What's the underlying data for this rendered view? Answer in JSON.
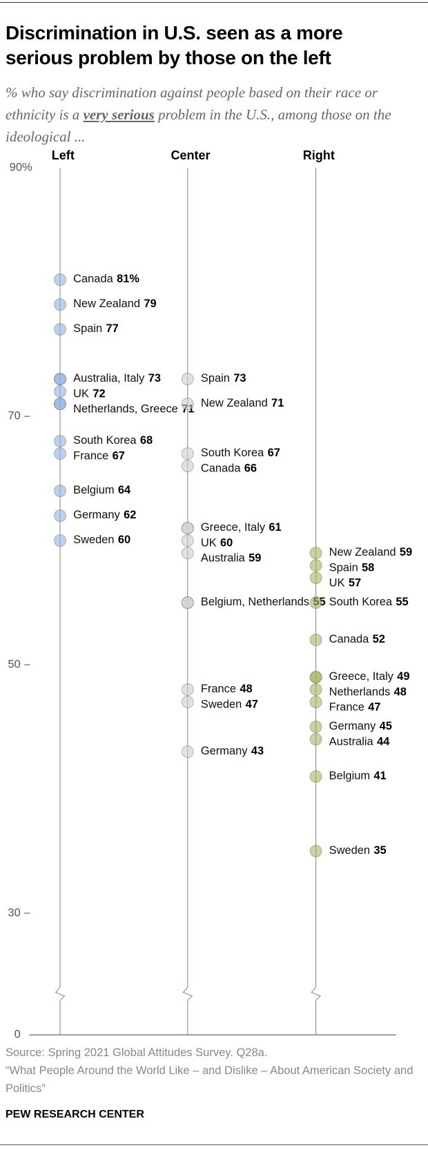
{
  "chart_data": {
    "type": "dot",
    "title": "Discrimination in U.S. seen as a more serious problem by those on the left",
    "subtitle": [
      "% who say discrimination against people based on their race or ethnicity is a ",
      "very serious",
      " problem in the U.S., among those on the ideological ..."
    ],
    "ylim": [
      0,
      90
    ],
    "yticks": [
      0,
      30,
      50,
      70,
      {
        "value": 90,
        "label": "90%"
      }
    ],
    "axis_break": true,
    "series": [
      {
        "name": "Left",
        "color": "#8fb2e3",
        "labels": [
          "Canada",
          "New Zealand",
          "Spain",
          "Australia, Italy",
          "UK",
          "Netherlands, Greece",
          "South Korea",
          "France",
          "Belgium",
          "Germany",
          "Sweden"
        ],
        "values": [
          81,
          79,
          77,
          73,
          72,
          71,
          68,
          67,
          64,
          62,
          60
        ],
        "value_labels": [
          "81%",
          null,
          null,
          null,
          null,
          null,
          null,
          null,
          null,
          null,
          null
        ]
      },
      {
        "name": "Center",
        "color": "#cfcfcf",
        "labels": [
          "Spain",
          "New Zealand",
          "South Korea",
          "Canada",
          "Greece, Italy",
          "UK",
          "Australia",
          "Belgium, Netherlands",
          "France",
          "Sweden",
          "Germany"
        ],
        "values": [
          73,
          71,
          67,
          66,
          61,
          60,
          59,
          55,
          48,
          47,
          43
        ]
      },
      {
        "name": "Right",
        "color": "#a3b55c",
        "labels": [
          "New Zealand",
          "Spain",
          "UK",
          "South Korea",
          "Canada",
          "Greece, Italy",
          "Netherlands",
          "France",
          "Germany",
          "Australia",
          "Belgium",
          "Sweden"
        ],
        "values": [
          59,
          58,
          57,
          55,
          52,
          49,
          48,
          47,
          45,
          44,
          41,
          35
        ]
      }
    ],
    "source": "Source: Spring 2021 Global Attitudes Survey. Q28a.",
    "note": "“What People Around the World Like – and Dislike – About American Society and Politics”",
    "brand": "PEW RESEARCH CENTER"
  }
}
